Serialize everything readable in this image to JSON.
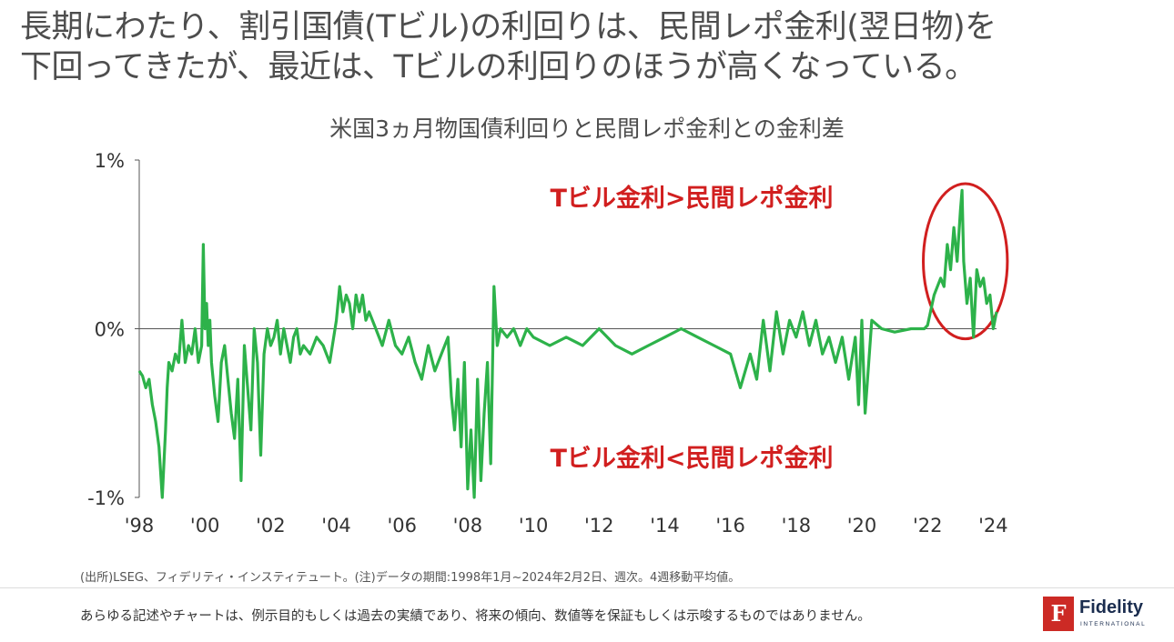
{
  "headline": {
    "line1": "長期にわたり、割引国債(Tビル)の利回りは、民間レポ金利(翌日物)を",
    "line2": "下回ってきたが、最近は、Tビルの利回りのほうが高くなっている。"
  },
  "footer": {
    "source": "(出所)LSEG、フィデリティ・インスティテュート。(注)データの期間:1998年1月~2024年2月2日、週次。4週移動平均値。",
    "disclaimer": "あらゆる記述やチャートは、例示目的もしくは過去の実績であり、将来の傾向、数値等を保証もしくは示唆するものではありません。"
  },
  "logo": {
    "glyph": "F",
    "name": "Fidelity",
    "sub": "INTERNATIONAL",
    "color": "#cc2a25"
  },
  "chart_data": {
    "type": "line",
    "title": "米国3ヵ月物国債利回りと民間レポ金利との金利差",
    "xlabel": "",
    "ylabel": "",
    "xlim": [
      1998.0,
      2024.1
    ],
    "ylim": [
      -1.0,
      1.0
    ],
    "y_unit": "%",
    "yticks": [
      {
        "value": 1,
        "label": "1%"
      },
      {
        "value": 0,
        "label": "0%"
      },
      {
        "value": -1,
        "label": "-1%"
      }
    ],
    "xticks": [
      {
        "value": 1998,
        "label": "'98"
      },
      {
        "value": 2000,
        "label": "'00"
      },
      {
        "value": 2002,
        "label": "'02"
      },
      {
        "value": 2004,
        "label": "'04"
      },
      {
        "value": 2006,
        "label": "'06"
      },
      {
        "value": 2008,
        "label": "'08"
      },
      {
        "value": 2010,
        "label": "'10"
      },
      {
        "value": 2012,
        "label": "'12"
      },
      {
        "value": 2014,
        "label": "'14"
      },
      {
        "value": 2016,
        "label": "'16"
      },
      {
        "value": 2018,
        "label": "'18"
      },
      {
        "value": 2020,
        "label": "'20"
      },
      {
        "value": 2022,
        "label": "'22"
      },
      {
        "value": 2024,
        "label": "'24"
      }
    ],
    "line_color": "#2db24a",
    "annotation_color": "#d11f1f",
    "annotations": [
      {
        "text": "Tビル金利>民間レポ金利"
      },
      {
        "text": "Tビル金利<民間レポ金利"
      }
    ],
    "highlight_circle": {
      "x_center": 2023.15,
      "y_center": 0.4,
      "x_radius": 1.28,
      "y_radius": 0.46
    },
    "grid": false,
    "legend": "none",
    "series": [
      {
        "x": [
          1998.0,
          1998.1,
          1998.2,
          1998.3,
          1998.4,
          1998.5,
          1998.6,
          1998.7,
          1998.8,
          1998.85,
          1998.9,
          1999.0,
          1999.1,
          1999.2,
          1999.3,
          1999.4,
          1999.5,
          1999.6,
          1999.7,
          1999.8,
          1999.9,
          1999.95,
          2000.0,
          2000.05,
          2000.1,
          2000.15,
          2000.2,
          2000.3,
          2000.4,
          2000.5,
          2000.6,
          2000.7,
          2000.8,
          2000.9,
          2001.0,
          2001.1,
          2001.2,
          2001.3,
          2001.4,
          2001.5,
          2001.6,
          2001.7,
          2001.8,
          2001.9,
          2002.0,
          2002.1,
          2002.2,
          2002.3,
          2002.4,
          2002.5,
          2002.6,
          2002.7,
          2002.8,
          2002.9,
          2003.0,
          2003.2,
          2003.4,
          2003.6,
          2003.8,
          2004.0,
          2004.1,
          2004.2,
          2004.3,
          2004.4,
          2004.5,
          2004.6,
          2004.7,
          2004.8,
          2004.9,
          2005.0,
          2005.2,
          2005.4,
          2005.6,
          2005.8,
          2006.0,
          2006.2,
          2006.4,
          2006.6,
          2006.8,
          2007.0,
          2007.2,
          2007.4,
          2007.5,
          2007.6,
          2007.7,
          2007.8,
          2007.9,
          2008.0,
          2008.1,
          2008.2,
          2008.3,
          2008.4,
          2008.5,
          2008.6,
          2008.7,
          2008.8,
          2008.9,
          2009.0,
          2009.2,
          2009.4,
          2009.6,
          2009.8,
          2010.0,
          2010.5,
          2011.0,
          2011.5,
          2012.0,
          2012.5,
          2013.0,
          2013.5,
          2014.0,
          2014.5,
          2015.0,
          2015.5,
          2016.0,
          2016.3,
          2016.6,
          2016.8,
          2017.0,
          2017.2,
          2017.4,
          2017.6,
          2017.8,
          2018.0,
          2018.2,
          2018.4,
          2018.6,
          2018.8,
          2019.0,
          2019.2,
          2019.4,
          2019.6,
          2019.8,
          2019.9,
          2020.0,
          2020.1,
          2020.3,
          2020.6,
          2021.0,
          2021.5,
          2021.9,
          2022.0,
          2022.2,
          2022.4,
          2022.5,
          2022.6,
          2022.7,
          2022.8,
          2022.9,
          2023.0,
          2023.05,
          2023.1,
          2023.2,
          2023.3,
          2023.4,
          2023.5,
          2023.6,
          2023.7,
          2023.8,
          2023.9,
          2024.0,
          2024.1
        ],
        "values": [
          -0.25,
          -0.28,
          -0.35,
          -0.3,
          -0.45,
          -0.55,
          -0.7,
          -1.0,
          -0.6,
          -0.35,
          -0.2,
          -0.25,
          -0.15,
          -0.2,
          0.05,
          -0.2,
          -0.1,
          -0.15,
          0.0,
          -0.2,
          -0.1,
          0.5,
          0.0,
          0.15,
          -0.1,
          0.05,
          -0.2,
          -0.4,
          -0.55,
          -0.2,
          -0.1,
          -0.3,
          -0.5,
          -0.65,
          -0.3,
          -0.9,
          -0.1,
          -0.35,
          -0.6,
          0.0,
          -0.2,
          -0.75,
          -0.15,
          0.0,
          -0.1,
          -0.05,
          0.05,
          -0.15,
          0.0,
          -0.1,
          -0.2,
          -0.05,
          0.0,
          -0.15,
          -0.1,
          -0.15,
          -0.05,
          -0.1,
          -0.2,
          0.05,
          0.25,
          0.1,
          0.2,
          0.15,
          0.0,
          0.2,
          0.1,
          0.2,
          0.05,
          0.1,
          0.0,
          -0.1,
          0.05,
          -0.1,
          -0.15,
          -0.05,
          -0.2,
          -0.3,
          -0.1,
          -0.25,
          -0.15,
          -0.05,
          -0.4,
          -0.6,
          -0.3,
          -0.7,
          -0.2,
          -0.95,
          -0.6,
          -1.0,
          -0.3,
          -0.9,
          -0.5,
          -0.2,
          -0.8,
          0.25,
          -0.1,
          0.0,
          -0.05,
          0.0,
          -0.1,
          0.0,
          -0.05,
          -0.1,
          -0.05,
          -0.1,
          0.0,
          -0.1,
          -0.15,
          -0.1,
          -0.05,
          0.0,
          -0.05,
          -0.1,
          -0.15,
          -0.35,
          -0.15,
          -0.3,
          0.05,
          -0.25,
          0.1,
          -0.15,
          0.05,
          -0.05,
          0.1,
          -0.1,
          0.05,
          -0.15,
          -0.05,
          -0.2,
          -0.05,
          -0.3,
          -0.05,
          -0.45,
          0.05,
          -0.5,
          0.05,
          0.0,
          -0.02,
          0.0,
          0.0,
          0.02,
          0.2,
          0.3,
          0.25,
          0.5,
          0.35,
          0.6,
          0.4,
          0.7,
          0.82,
          0.4,
          0.15,
          0.3,
          -0.05,
          0.35,
          0.25,
          0.3,
          0.15,
          0.2,
          0.0,
          0.1
        ]
      }
    ]
  }
}
